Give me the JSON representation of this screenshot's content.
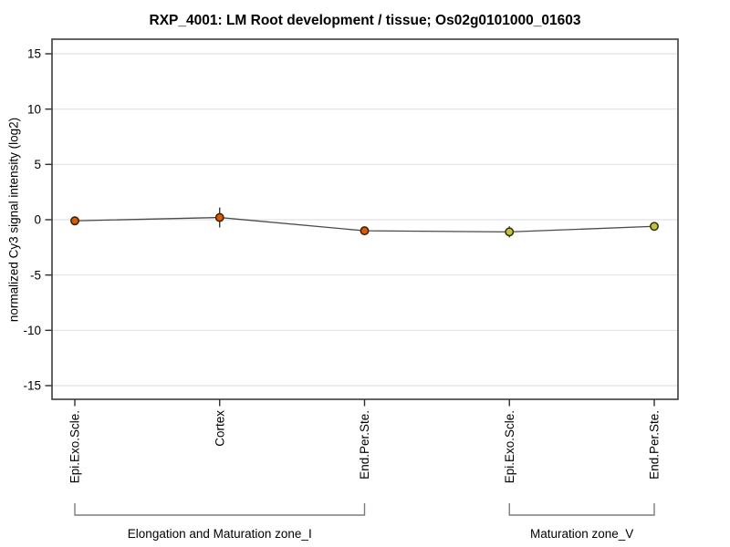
{
  "figure": {
    "title": "RXP_4001: LM Root development / tissue; Os02g0101000_01603"
  },
  "chart_data": {
    "type": "line",
    "title": "RXP_4001: LM Root development / tissue; Os02g0101000_01603",
    "xlabel": "",
    "ylabel": "normalized Cy3 signal intensity (log2)",
    "ylim": [
      -16.5,
      16.5
    ],
    "yticks": [
      15,
      10,
      5,
      0,
      -5,
      -10,
      -15
    ],
    "grid": true,
    "legend_position": "none",
    "categories": [
      "Epi.Exo.Scle.",
      "Cortex",
      "End.Per.Ste.",
      "Epi.Exo.Scle.",
      "End.Per.Ste."
    ],
    "series": [
      {
        "name": "normalized Cy3 signal intensity",
        "values": [
          -0.1,
          0.2,
          -1.0,
          -1.1,
          -0.6
        ],
        "errors": [
          0.4,
          0.9,
          0.3,
          0.5,
          0.3
        ]
      }
    ],
    "point_group_index": [
      0,
      0,
      0,
      1,
      1
    ],
    "groups": [
      {
        "label": "Elongation and Maturation zone_I",
        "from": 0,
        "to": 2,
        "point_fill": "#D85A04",
        "point_stroke": "#3A1E02"
      },
      {
        "label": "Maturation zone_V",
        "from": 3,
        "to": 4,
        "point_fill": "#C2C23E",
        "point_stroke": "#30300C"
      }
    ],
    "colors": {
      "line": "#4A4A4A",
      "error_bar": "#262626",
      "grid": "#E2E2E2",
      "box": "#3D3D3D",
      "tick": "#2E2E2E",
      "bracket": "#7D7D7D",
      "text": "#000000",
      "background": "#FFFFFF"
    }
  }
}
